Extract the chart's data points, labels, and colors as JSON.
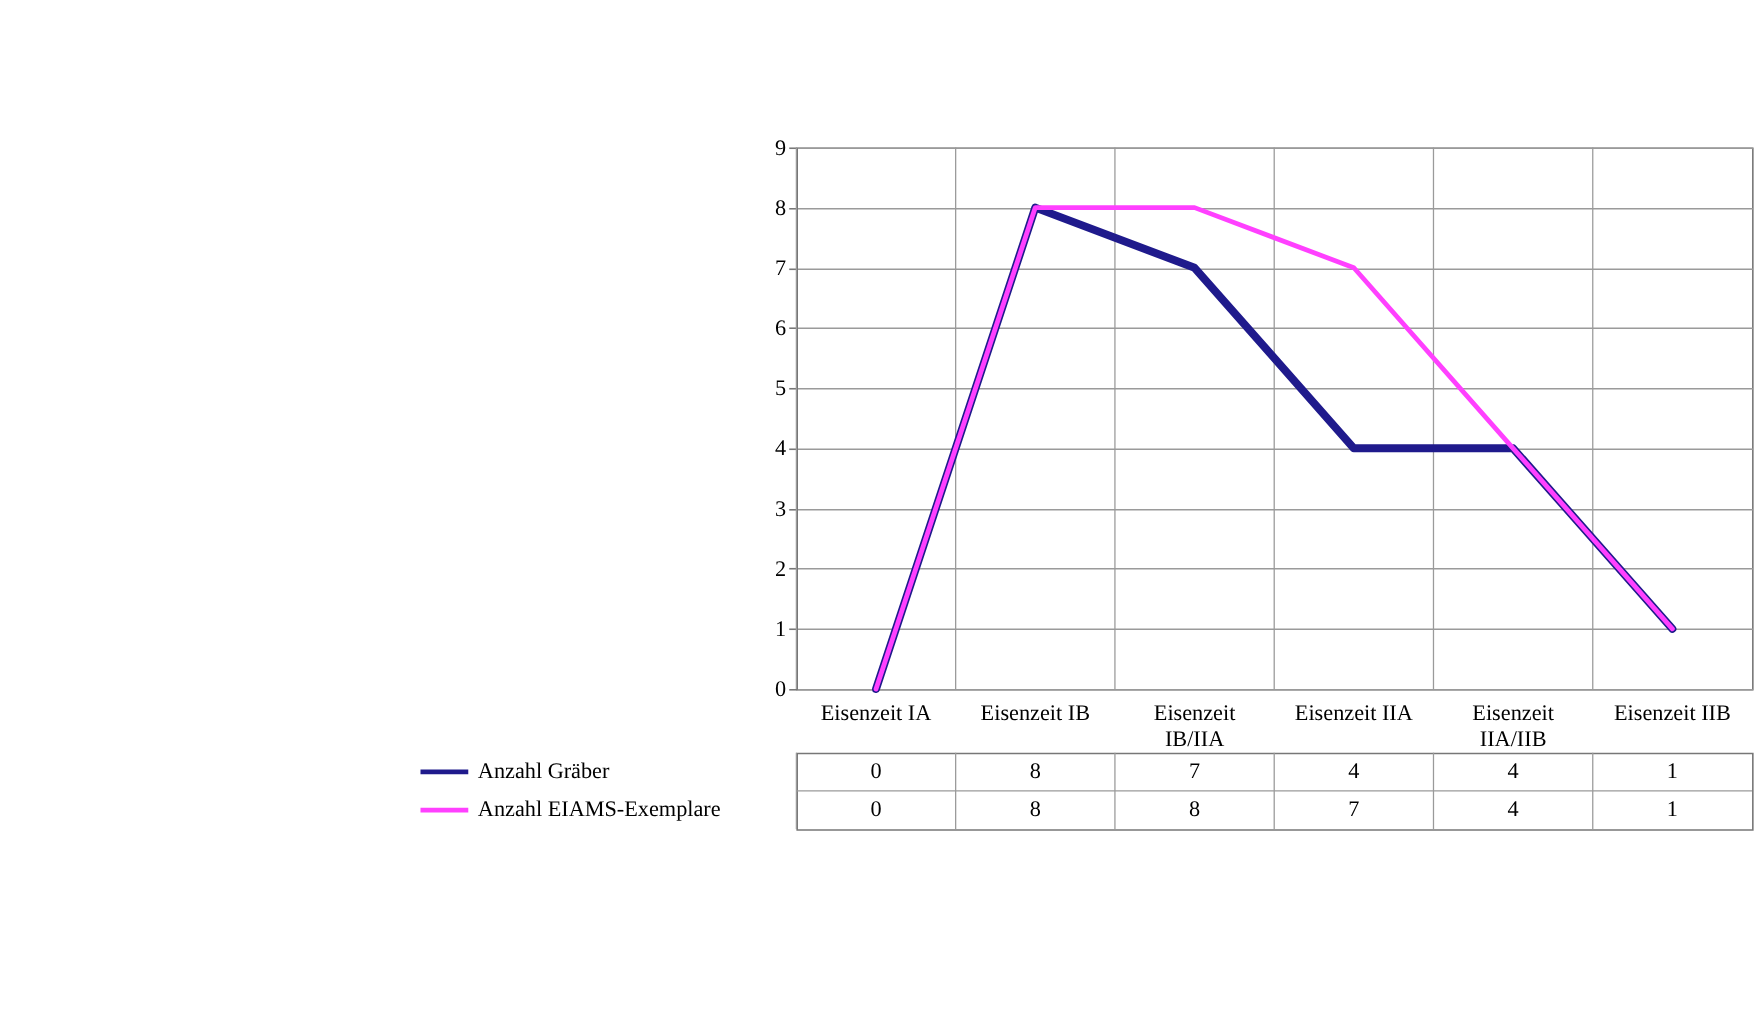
{
  "chart_data": {
    "type": "line",
    "categories": [
      "Eisenzeit IA",
      "Eisenzeit IB",
      "Eisenzeit IB/IIA",
      "Eisenzeit IIA",
      "Eisenzeit IIA/IIB",
      "Eisenzeit IIB"
    ],
    "series": [
      {
        "name": "Anzahl Gräber",
        "color": "#1f1a8c",
        "values": [
          0,
          8,
          7,
          4,
          4,
          1
        ]
      },
      {
        "name": "Anzahl EIAMS-Exemplare",
        "color": "#ff40ff",
        "values": [
          0,
          8,
          8,
          7,
          4,
          1
        ]
      }
    ],
    "ylim": [
      0,
      9
    ],
    "yticks": [
      0,
      1,
      2,
      3,
      4,
      5,
      6,
      7,
      8,
      9
    ],
    "grid": true,
    "legend": "bottom left",
    "data_labels": true
  }
}
